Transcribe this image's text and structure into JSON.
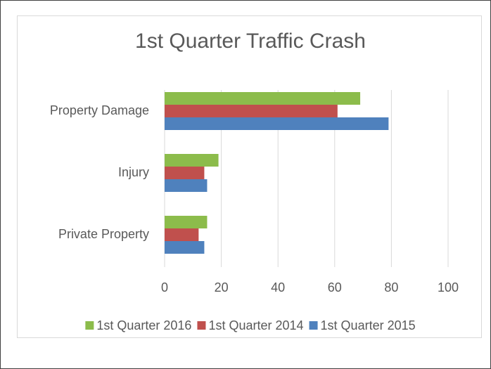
{
  "chart_data": {
    "type": "bar",
    "orientation": "horizontal",
    "title": "1st Quarter Traffic Crash",
    "categories": [
      "Property Damage",
      "Injury",
      "Private Property"
    ],
    "series": [
      {
        "name": "1st Quarter 2016",
        "color": "#8cbc4b",
        "values": [
          69,
          19,
          15
        ]
      },
      {
        "name": "1st Quarter 2014",
        "color": "#c0504d",
        "values": [
          61,
          14,
          12
        ]
      },
      {
        "name": "1st Quarter 2015",
        "color": "#4f81bd",
        "values": [
          79,
          15,
          14
        ]
      }
    ],
    "xlim": [
      0,
      100
    ],
    "xticks": [
      0,
      20,
      40,
      60,
      80,
      100
    ],
    "grid": true,
    "legend": "bottom"
  }
}
